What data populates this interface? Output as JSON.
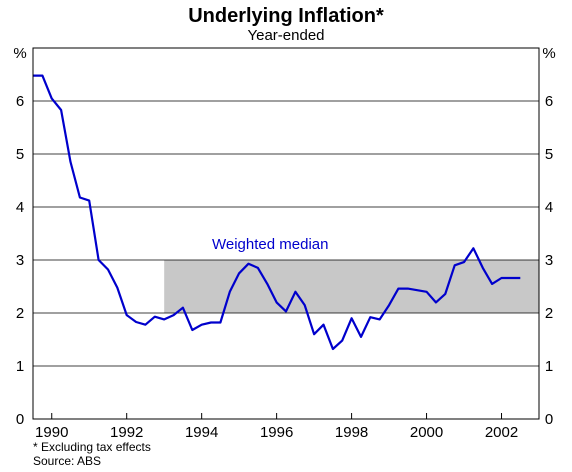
{
  "chart_data": {
    "type": "line",
    "title": "Underlying Inflation*",
    "subtitle": "Year-ended",
    "y_unit_left": "%",
    "y_unit_right": "%",
    "ylim": [
      0,
      7
    ],
    "y_ticks": [
      0,
      1,
      2,
      3,
      4,
      5,
      6
    ],
    "xlim": [
      1989.5,
      2003.0
    ],
    "x_ticks": [
      1990,
      1992,
      1994,
      1996,
      1998,
      2000,
      2002
    ],
    "x_tick_labels": [
      "1990",
      "1992",
      "1994",
      "1996",
      "1998",
      "2000",
      "2002"
    ],
    "grid": "horizontal",
    "target_band": {
      "x_start": 1993.0,
      "x_end": 2003.0,
      "y_low": 2,
      "y_high": 3,
      "color": "#c8c8c8"
    },
    "annotation": "Weighted median",
    "footnote": "* Excluding tax effects",
    "source": "Source: ABS",
    "series": [
      {
        "color": "#0000cc",
        "x": [
          1989.5,
          1989.75,
          1990.0,
          1990.25,
          1990.5,
          1990.75,
          1991.0,
          1991.25,
          1991.5,
          1991.75,
          1992.0,
          1992.25,
          1992.5,
          1992.75,
          1993.0,
          1993.25,
          1993.5,
          1993.75,
          1994.0,
          1994.25,
          1994.5,
          1994.75,
          1995.0,
          1995.25,
          1995.5,
          1995.75,
          1996.0,
          1996.25,
          1996.5,
          1996.75,
          1997.0,
          1997.25,
          1997.5,
          1997.75,
          1998.0,
          1998.25,
          1998.5,
          1998.75,
          1999.0,
          1999.25,
          1999.5,
          1999.75,
          2000.0,
          2000.25,
          2000.5,
          2000.75,
          2001.0,
          2001.25,
          2001.5,
          2001.75,
          2002.0,
          2002.25,
          2002.5
        ],
        "values": [
          6.48,
          6.48,
          6.05,
          5.83,
          4.85,
          4.18,
          4.12,
          3.0,
          2.82,
          2.48,
          1.96,
          1.83,
          1.78,
          1.93,
          1.88,
          1.96,
          2.1,
          1.68,
          1.78,
          1.82,
          1.82,
          2.4,
          2.75,
          2.93,
          2.85,
          2.55,
          2.2,
          2.03,
          2.4,
          2.15,
          1.6,
          1.78,
          1.32,
          1.48,
          1.9,
          1.55,
          1.92,
          1.88,
          2.15,
          2.46,
          2.46,
          2.43,
          2.4,
          2.2,
          2.36,
          2.9,
          2.96,
          3.22,
          2.85,
          2.55,
          2.66,
          2.66,
          2.66
        ]
      }
    ]
  }
}
